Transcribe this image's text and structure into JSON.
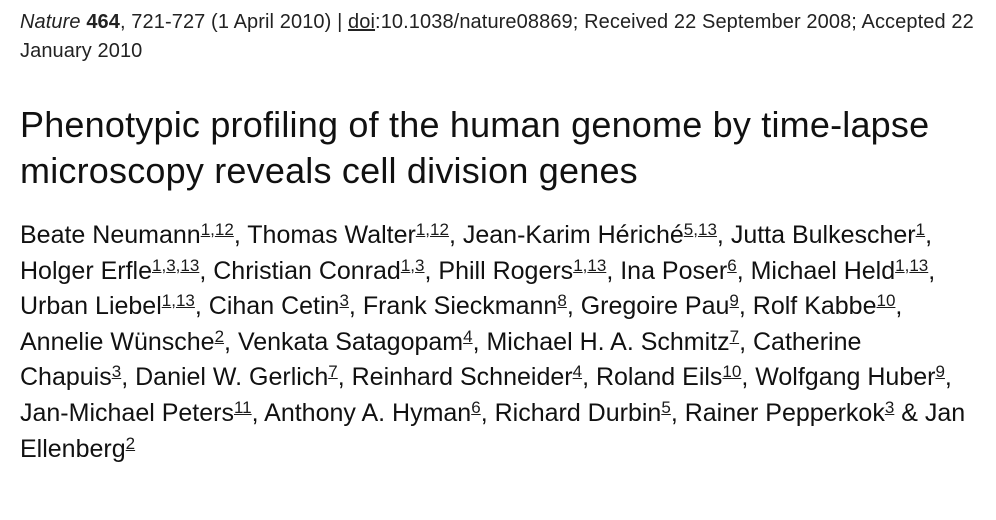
{
  "citation": {
    "journal": "Nature",
    "volume": "464",
    "pages_date": ", 721-727 (1 April 2010) | ",
    "doi_label": "doi",
    "doi_value": ":10.1038/nature08869",
    "received_accepted": "; Received 22 September 2008; Accepted 22 January 2010"
  },
  "title": "Phenotypic profiling of the human genome by time-lapse microscopy reveals cell division genes",
  "authors": [
    {
      "name": "Beate Neumann",
      "affiliations": [
        "1",
        "12"
      ],
      "sep": ", "
    },
    {
      "name": "Thomas Walter",
      "affiliations": [
        "1",
        "12"
      ],
      "sep": ", "
    },
    {
      "name": "Jean-Karim Hériché",
      "affiliations": [
        "5",
        "13"
      ],
      "sep": ", "
    },
    {
      "name": "Jutta Bulkescher",
      "affiliations": [
        "1"
      ],
      "sep": ", "
    },
    {
      "name": "Holger Erfle",
      "affiliations": [
        "1",
        "3",
        "13"
      ],
      "sep": ", "
    },
    {
      "name": "Christian Conrad",
      "affiliations": [
        "1",
        "3"
      ],
      "sep": ", "
    },
    {
      "name": "Phill Rogers",
      "affiliations": [
        "1",
        "13"
      ],
      "sep": ", "
    },
    {
      "name": "Ina Poser",
      "affiliations": [
        "6"
      ],
      "sep": ", "
    },
    {
      "name": "Michael Held",
      "affiliations": [
        "1",
        "13"
      ],
      "sep": ", "
    },
    {
      "name": "Urban Liebel",
      "affiliations": [
        "1",
        "13"
      ],
      "sep": ", "
    },
    {
      "name": "Cihan Cetin",
      "affiliations": [
        "3"
      ],
      "sep": ", "
    },
    {
      "name": "Frank Sieckmann",
      "affiliations": [
        "8"
      ],
      "sep": ", "
    },
    {
      "name": "Gregoire Pau",
      "affiliations": [
        "9"
      ],
      "sep": ", "
    },
    {
      "name": "Rolf Kabbe",
      "affiliations": [
        "10"
      ],
      "sep": ", "
    },
    {
      "name": "Annelie Wünsche",
      "affiliations": [
        "2"
      ],
      "sep": ", "
    },
    {
      "name": "Venkata Satagopam",
      "affiliations": [
        "4"
      ],
      "sep": ", "
    },
    {
      "name": "Michael H. A. Schmitz",
      "affiliations": [
        "7"
      ],
      "sep": ", "
    },
    {
      "name": "Catherine Chapuis",
      "affiliations": [
        "3"
      ],
      "sep": ", "
    },
    {
      "name": "Daniel W. Gerlich",
      "affiliations": [
        "7"
      ],
      "sep": ", "
    },
    {
      "name": "Reinhard Schneider",
      "affiliations": [
        "4"
      ],
      "sep": ", "
    },
    {
      "name": "Roland Eils",
      "affiliations": [
        "10"
      ],
      "sep": ", "
    },
    {
      "name": "Wolfgang Huber",
      "affiliations": [
        "9"
      ],
      "sep": ", "
    },
    {
      "name": "Jan-Michael Peters",
      "affiliations": [
        "11"
      ],
      "sep": ", "
    },
    {
      "name": "Anthony A. Hyman",
      "affiliations": [
        "6"
      ],
      "sep": ", "
    },
    {
      "name": "Richard Durbin",
      "affiliations": [
        "5"
      ],
      "sep": ", "
    },
    {
      "name": "Rainer Pepperkok",
      "affiliations": [
        "3"
      ],
      "sep": " & "
    },
    {
      "name": "Jan Ellenberg",
      "affiliations": [
        "2"
      ],
      "sep": ""
    }
  ]
}
